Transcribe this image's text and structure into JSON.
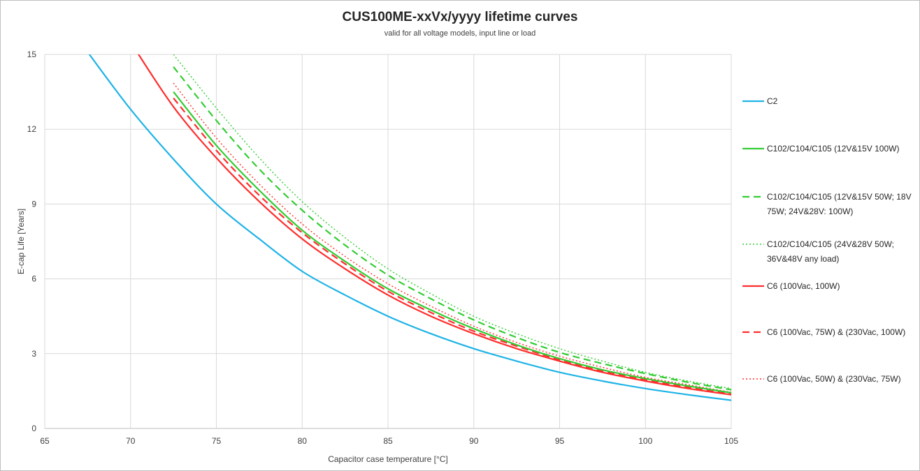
{
  "chart_data": {
    "type": "line",
    "title": "CUS100ME-xxVx/yyyy lifetime curves",
    "subtitle": "valid for all voltage models, input line or load",
    "xlabel": "Capacitor case temperature [°C]",
    "ylabel": "E-cap Life [Years]",
    "xlim": [
      65,
      105
    ],
    "ylim": [
      0,
      15
    ],
    "xticks": [
      65,
      70,
      75,
      80,
      85,
      90,
      95,
      100,
      105
    ],
    "yticks": [
      0,
      3,
      6,
      9,
      12,
      15
    ],
    "grid": true,
    "legend_position": "right",
    "x": [
      67.6,
      70,
      72.5,
      75,
      77.5,
      80,
      82.5,
      85,
      87.5,
      90,
      92.5,
      95,
      97.5,
      100,
      102.5,
      105
    ],
    "series": [
      {
        "name": "C2",
        "color": "#1fb3e6",
        "dash": "solid",
        "values": [
          15.0,
          12.8,
          10.8,
          9.0,
          7.6,
          6.3,
          5.35,
          4.5,
          3.8,
          3.2,
          2.7,
          2.25,
          1.9,
          1.6,
          1.35,
          1.13
        ]
      },
      {
        "name": "C102/C104/C105 (12V&15V 100W)",
        "color": "#33cc33",
        "dash": "solid",
        "values": [
          null,
          null,
          13.5,
          11.35,
          9.55,
          7.95,
          6.7,
          5.6,
          4.75,
          4.0,
          3.35,
          2.8,
          2.35,
          2.0,
          1.7,
          1.43
        ]
      },
      {
        "name": "C102/C104/C105 (12V&15V 50W; 18V 75W; 24V&28V: 100W)",
        "color": "#33cc33",
        "dash": "dashed",
        "values": [
          null,
          null,
          14.5,
          12.35,
          10.4,
          8.75,
          7.35,
          6.15,
          5.2,
          4.35,
          3.65,
          3.05,
          2.6,
          2.2,
          1.85,
          1.55
        ]
      },
      {
        "name": "C102/C104/C105 (24V&28V 50W; 36V&48V any load)",
        "color": "#33cc33",
        "dash": "dotted",
        "values": [
          null,
          null,
          15.0,
          12.85,
          10.85,
          9.1,
          7.65,
          6.4,
          5.4,
          4.5,
          3.8,
          3.2,
          2.7,
          2.25,
          1.9,
          1.6
        ]
      },
      {
        "name": "C6 (100Vac, 100W)",
        "color": "#ff2d2d",
        "dash": "solid",
        "values": [
          null,
          15.5,
          12.9,
          10.85,
          9.1,
          7.6,
          6.4,
          5.35,
          4.5,
          3.8,
          3.2,
          2.7,
          2.25,
          1.9,
          1.6,
          1.35
        ]
      },
      {
        "name": "C6 (100Vac, 75W) & (230Vac, 100W)",
        "color": "#ff2d2d",
        "dash": "dashed",
        "values": [
          null,
          null,
          13.25,
          11.15,
          9.35,
          7.85,
          6.6,
          5.5,
          4.65,
          3.9,
          3.3,
          2.75,
          2.3,
          1.95,
          1.65,
          1.4
        ]
      },
      {
        "name": "C6 (100Vac, 50W) & (230Vac, 75W)",
        "color": "#ff2d2d",
        "dash": "dotted",
        "values": [
          null,
          null,
          13.85,
          11.65,
          9.8,
          8.2,
          6.9,
          5.8,
          4.9,
          4.1,
          3.45,
          2.9,
          2.45,
          2.05,
          1.75,
          1.45
        ]
      }
    ]
  }
}
